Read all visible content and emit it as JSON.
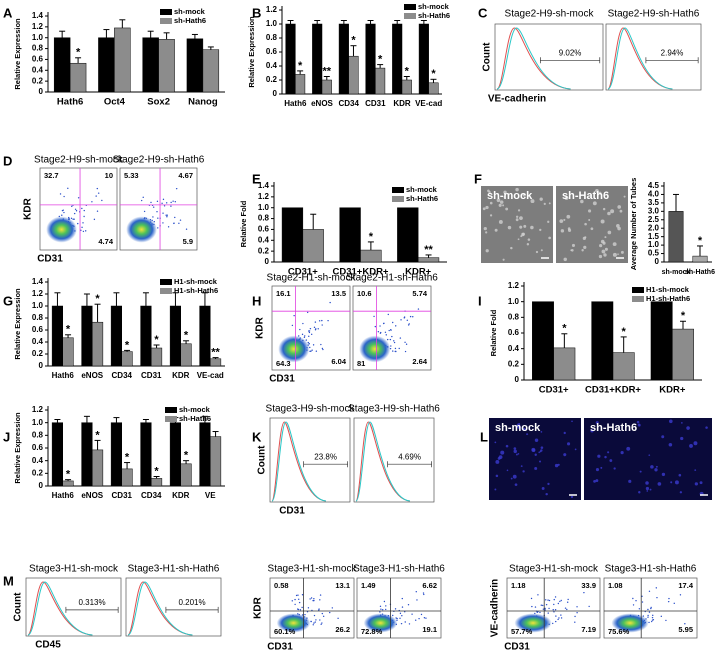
{
  "chart_data": [
    {
      "type": "bar",
      "panel": "A",
      "ylabel": "Relative Expression",
      "categories": [
        "Hath6",
        "Oct4",
        "Sox2",
        "Nanog"
      ],
      "ylim": [
        0,
        1.4
      ],
      "yticks": [
        0,
        0.2,
        0.4,
        0.6,
        0.8,
        {
          "value": 1,
          "label": "1.0"
        },
        1.2,
        1.4
      ],
      "series": [
        {
          "name": "sh-mock",
          "color": "#000000",
          "values": [
            1.0,
            1.0,
            1.0,
            0.98
          ],
          "errors": [
            0.12,
            0.15,
            0.12,
            0.08
          ]
        },
        {
          "name": "sh-Hath6",
          "color": "#8c8c8c",
          "values": [
            0.53,
            1.18,
            0.97,
            0.78
          ],
          "errors": [
            0.1,
            0.15,
            0.12,
            0.05
          ],
          "significance": [
            "*",
            null,
            null,
            null
          ]
        }
      ]
    },
    {
      "type": "bar",
      "panel": "B",
      "ylabel": "Relative Expression",
      "categories": [
        "Hath6",
        "eNOS",
        "CD34",
        "CD31",
        "KDR",
        "VE-cad"
      ],
      "ylim": [
        0,
        1.2
      ],
      "yticks": [
        0,
        0.2,
        0.4,
        0.6,
        0.8,
        {
          "value": 1,
          "label": "1.0"
        },
        1.2
      ],
      "series": [
        {
          "name": "sh-mock",
          "color": "#000000",
          "values": [
            1,
            1,
            1,
            1,
            1,
            1
          ],
          "errors": [
            0.05,
            0.05,
            0.05,
            0.05,
            0.05,
            0.05
          ]
        },
        {
          "name": "sh-Hath6",
          "color": "#8c8c8c",
          "values": [
            0.28,
            0.2,
            0.54,
            0.37,
            0.2,
            0.16
          ],
          "errors": [
            0.05,
            0.05,
            0.15,
            0.05,
            0.05,
            0.05
          ],
          "significance": [
            "*",
            "**",
            "*",
            "*",
            "*",
            "*"
          ]
        }
      ]
    },
    {
      "type": "bar",
      "panel": "E",
      "ylabel": "Relative Fold",
      "categories": [
        "CD31+",
        "CD31+KDR+",
        "KDR+"
      ],
      "ylim": [
        0,
        1.4
      ],
      "yticks": [
        0,
        0.2,
        0.4,
        0.6,
        0.8,
        {
          "value": 1,
          "label": "1.0"
        },
        1.2,
        1.4
      ],
      "series": [
        {
          "name": "sh-mock",
          "color": "#000000",
          "values": [
            1,
            1,
            1
          ]
        },
        {
          "name": "sh-Hath6",
          "color": "#8c8c8c",
          "values": [
            0.6,
            0.22,
            0.08
          ],
          "errors": [
            0.28,
            0.15,
            0.05
          ],
          "significance": [
            null,
            "*",
            "**"
          ]
        }
      ]
    },
    {
      "type": "bar",
      "ylabel": "Average Number of Tubes",
      "categories": [
        "sh-mock",
        "sh-Hath6"
      ],
      "ylim": [
        0,
        4.5
      ],
      "yticks": [
        0,
        0.5,
        {
          "value": 1,
          "label": "1.0"
        },
        1.5,
        {
          "value": 2,
          "label": "2.0"
        },
        2.5,
        {
          "value": 3,
          "label": "3.0"
        },
        3.5,
        {
          "value": 4,
          "label": "4.0"
        },
        4.5
      ],
      "series": [
        {
          "colors": [
            "#555555",
            "#aaaaaa"
          ],
          "values": [
            3.0,
            0.35
          ],
          "errors": [
            1.0,
            0.6
          ],
          "significance": [
            null,
            "*"
          ]
        }
      ]
    },
    {
      "type": "bar",
      "panel": "G",
      "ylabel": "Relative Expression",
      "categories": [
        "Hath6",
        "eNOS",
        "CD34",
        "CD31",
        "KDR",
        "VE-cad"
      ],
      "ylim": [
        0,
        1.4
      ],
      "yticks": [
        0,
        0.2,
        0.4,
        0.6,
        0.8,
        {
          "value": 1,
          "label": "1.0"
        },
        1.2,
        1.4
      ],
      "series": [
        {
          "name": "H1-sh-mock",
          "color": "#000000",
          "values": [
            1,
            1,
            1,
            1,
            1,
            1
          ],
          "errors": [
            0.22,
            0.2,
            0.22,
            0.22,
            0.22,
            0.22
          ]
        },
        {
          "name": "H1-sh-Hath6",
          "color": "#8c8c8c",
          "values": [
            0.47,
            0.73,
            0.24,
            0.3,
            0.37,
            0.12
          ],
          "errors": [
            0.05,
            0.3,
            0.02,
            0.05,
            0.05,
            0.02
          ],
          "significance": [
            "*",
            "*",
            "*",
            "*",
            "*",
            "**"
          ]
        }
      ]
    },
    {
      "type": "bar",
      "panel": "I",
      "ylabel": "Relative Fold",
      "categories": [
        "CD31+",
        "CD31+KDR+",
        "KDR+"
      ],
      "ylim": [
        0,
        1.2
      ],
      "yticks": [
        0,
        0.2,
        0.4,
        0.6,
        0.8,
        {
          "value": 1,
          "label": "1.0"
        },
        1.2
      ],
      "series": [
        {
          "name": "H1-sh-mock",
          "color": "#000000",
          "values": [
            1,
            1,
            1
          ]
        },
        {
          "name": "H1-sh-Hath6",
          "color": "#8c8c8c",
          "values": [
            0.41,
            0.35,
            0.65
          ],
          "errors": [
            0.18,
            0.2,
            0.1
          ],
          "significance": [
            "*",
            "*",
            "*"
          ]
        }
      ]
    },
    {
      "type": "bar",
      "panel": "J",
      "ylabel": "Relative Expression",
      "categories": [
        "Hath6",
        "eNOS",
        "CD31",
        "CD34",
        "KDR",
        "VE"
      ],
      "ylim": [
        0,
        1.2
      ],
      "yticks": [
        0,
        0.2,
        0.4,
        0.6,
        0.8,
        {
          "value": 1,
          "label": "1.0"
        },
        1.2
      ],
      "series": [
        {
          "name": "sh-mock",
          "color": "#000000",
          "values": [
            1,
            1,
            1,
            1,
            1,
            1
          ],
          "errors": [
            0.05,
            0.1,
            0.08,
            0.05,
            0.08,
            0.1
          ]
        },
        {
          "name": "sh-Hath6",
          "color": "#8c8c8c",
          "values": [
            0.08,
            0.57,
            0.27,
            0.12,
            0.35,
            0.78
          ],
          "errors": [
            0.02,
            0.15,
            0.1,
            0.03,
            0.05,
            0.08
          ],
          "significance": [
            "*",
            "*",
            "*",
            "*",
            "*",
            null
          ]
        }
      ]
    }
  ],
  "histograms": [
    {
      "panel": "C",
      "xlabel": "VE-cadherin",
      "ylabel": "Count",
      "plots": [
        {
          "title": "Stage2-H9-sh-mock",
          "gate": "9.02%"
        },
        {
          "title": "Stage2-H9-sh-Hath6",
          "gate": "2.94%"
        }
      ]
    },
    {
      "panel": "K",
      "xlabel": "CD31",
      "ylabel": "Count",
      "plots": [
        {
          "title": "Stage3-H9-sh-mock",
          "gate": "23.8%"
        },
        {
          "title": "Stage3-H9-sh-Hath6",
          "gate": "4.69%"
        }
      ]
    },
    {
      "panel": "M",
      "xlabel": "CD45",
      "ylabel": "Count",
      "plots": [
        {
          "title": "Stage3-H1-sh-mock",
          "gate": "0.313%"
        },
        {
          "title": "Stage3-H1-sh-Hath6",
          "gate": "0.201%"
        }
      ]
    }
  ],
  "flows": [
    {
      "panel": "D",
      "xlabel": "CD31",
      "ylabel": "KDR",
      "plots": [
        {
          "title": "Stage2-H9-sh-mock",
          "quadrants": [
            "32.7",
            "10",
            null,
            "4.74"
          ]
        },
        {
          "title": "Stage2-H9-sh-Hath6",
          "quadrants": [
            "5.33",
            "4.67",
            null,
            "5.9"
          ]
        }
      ]
    },
    {
      "panel": "H",
      "xlabel": "CD31",
      "ylabel": "KDR",
      "plots": [
        {
          "title": "Stage2-H1-sh-mock",
          "quadrants": [
            "16.1",
            "13.5",
            "64.3",
            "6.04"
          ]
        },
        {
          "title": "Stage2-H1-sh-Hath6",
          "quadrants": [
            "10.6",
            "5.74",
            "81",
            "2.64"
          ]
        }
      ]
    },
    {
      "xlabel": "CD31",
      "ylabel": "KDR",
      "plots": [
        {
          "title": "Stage3-H1-sh-mock",
          "quadrants": [
            "0.58",
            "13.1",
            "60.1%",
            "26.2"
          ]
        },
        {
          "title": "Stage3-H1-sh-Hath6",
          "quadrants": [
            "1.49",
            "6.62",
            "72.8%",
            "19.1"
          ]
        }
      ]
    },
    {
      "xlabel": "CD31",
      "ylabel": "VE-cadherin",
      "plots": [
        {
          "title": "Stage3-H1-sh-mock",
          "quadrants": [
            "1.18",
            "33.9",
            "57.7%",
            "7.19"
          ]
        },
        {
          "title": "Stage3-H1-sh-Hath6",
          "quadrants": [
            "1.08",
            "17.4",
            "75.6%",
            "5.95"
          ]
        }
      ]
    }
  ],
  "images": [
    {
      "panel": "F",
      "labels": [
        "sh-mock",
        "sh-Hath6"
      ]
    },
    {
      "panel": "L",
      "labels": [
        "sh-mock",
        "sh-Hath6"
      ]
    }
  ]
}
